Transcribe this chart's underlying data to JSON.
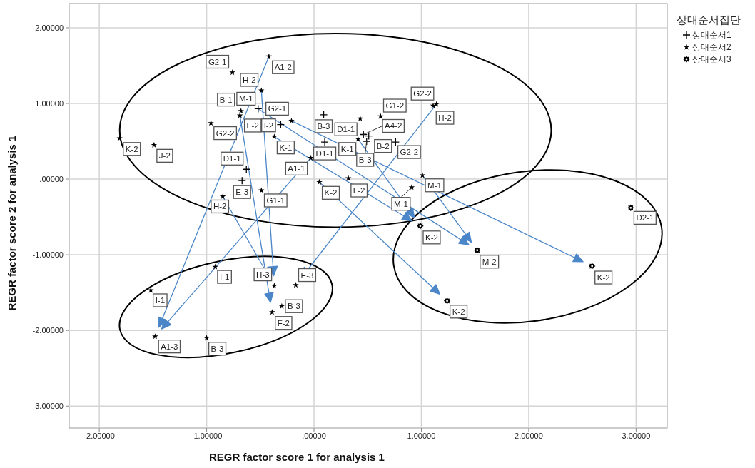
{
  "chart_data": {
    "type": "scatter",
    "xlabel": "REGR factor score   1 for analysis 1",
    "ylabel": "REGR factor score   2 for analysis 1",
    "legend_title": "상대순서집단",
    "legend": "top right",
    "grid": true,
    "xlim": [
      -2.28,
      3.29
    ],
    "ylim": [
      -3.29,
      2.32
    ],
    "xticks": [
      {
        "value": -2,
        "label": "-2.00000"
      },
      {
        "value": -1,
        "label": "-1.00000"
      },
      {
        "value": 0,
        "label": ".00000"
      },
      {
        "value": 1,
        "label": "1.00000"
      },
      {
        "value": 2,
        "label": "2.00000"
      },
      {
        "value": 3,
        "label": "3.00000"
      }
    ],
    "yticks": [
      {
        "value": -3,
        "label": "-3.00000"
      },
      {
        "value": -2,
        "label": "-2.00000"
      },
      {
        "value": -1,
        "label": "-1.00000"
      },
      {
        "value": 0,
        "label": ".00000"
      },
      {
        "value": 1,
        "label": "1.00000"
      },
      {
        "value": 2,
        "label": "2.00000"
      }
    ],
    "series": [
      {
        "name": "상대순서1",
        "color": "#000000",
        "marker": "cross",
        "x": [
          -0.52,
          -0.31,
          -0.63,
          -0.67,
          0.09,
          0.46,
          0.49,
          0.51,
          0.76,
          0.1
        ],
        "values": [
          0.93,
          0.72,
          0.13,
          -0.02,
          0.85,
          0.59,
          0.5,
          0.57,
          0.49,
          0.49
        ]
      },
      {
        "name": "상대순서2",
        "color": "#000000",
        "marker": "star",
        "x": [
          -0.42,
          -0.76,
          -0.49,
          -0.68,
          -0.21,
          -0.69,
          -0.96,
          -0.37,
          -1.81,
          -1.49,
          -0.03,
          -0.49,
          -0.85,
          0.43,
          0.62,
          0.41,
          1.11,
          1.14,
          0.05,
          0.32,
          1.01,
          0.91,
          -0.92,
          -0.37,
          -0.17,
          -0.3,
          -0.39,
          -1.52,
          -1.48,
          -1.0
        ],
        "values": [
          1.62,
          1.41,
          1.17,
          0.9,
          0.77,
          0.84,
          0.74,
          0.56,
          0.54,
          0.45,
          0.28,
          -0.15,
          -0.23,
          0.8,
          0.83,
          0.53,
          0.97,
          0.99,
          -0.04,
          0.01,
          0.05,
          -0.11,
          -1.16,
          -1.41,
          -1.4,
          -1.68,
          -1.76,
          -1.47,
          -2.08,
          -2.1
        ]
      },
      {
        "name": "상대순서3",
        "color": "#000000",
        "marker": "circle",
        "x": [
          0.99,
          1.52,
          2.59,
          1.24,
          2.95
        ],
        "values": [
          -0.62,
          -0.94,
          -1.15,
          -1.61,
          -0.38
        ]
      }
    ],
    "annotations": [
      {
        "text": "A1-2",
        "x": -0.42,
        "y": 1.62
      },
      {
        "text": "G2-1",
        "x": -0.76,
        "y": 1.41
      },
      {
        "text": "H-2",
        "x": -0.49,
        "y": 1.17
      },
      {
        "text": "B-1",
        "x": -0.68,
        "y": 0.9
      },
      {
        "text": "M-1",
        "x": -0.52,
        "y": 0.93
      },
      {
        "text": "G2-1",
        "x": -0.21,
        "y": 0.77
      },
      {
        "text": "I-2",
        "x": -0.31,
        "y": 0.72
      },
      {
        "text": "F-2",
        "x": -0.69,
        "y": 0.84
      },
      {
        "text": "G2-2",
        "x": -0.96,
        "y": 0.74
      },
      {
        "text": "K-1",
        "x": -0.37,
        "y": 0.56
      },
      {
        "text": "K-2",
        "x": -1.81,
        "y": 0.54
      },
      {
        "text": "J-2",
        "x": -1.49,
        "y": 0.45
      },
      {
        "text": "D1-1",
        "x": -0.63,
        "y": 0.13
      },
      {
        "text": "A1-1",
        "x": -0.03,
        "y": 0.28
      },
      {
        "text": "E-3",
        "x": -0.67,
        "y": -0.02
      },
      {
        "text": "G1-1",
        "x": -0.49,
        "y": -0.15
      },
      {
        "text": "H-2",
        "x": -0.85,
        "y": -0.23
      },
      {
        "text": "B-3",
        "x": 0.09,
        "y": 0.85
      },
      {
        "text": "D1-1",
        "x": 0.43,
        "y": 0.8
      },
      {
        "text": "G1-2",
        "x": 0.62,
        "y": 0.83
      },
      {
        "text": "A4-2",
        "x": 0.46,
        "y": 0.59
      },
      {
        "text": "K-1",
        "x": 0.41,
        "y": 0.53
      },
      {
        "text": "B-3",
        "x": 0.49,
        "y": 0.5
      },
      {
        "text": "B-2",
        "x": 0.51,
        "y": 0.57
      },
      {
        "text": "G2-2",
        "x": 0.76,
        "y": 0.49
      },
      {
        "text": "D1-1",
        "x": 0.1,
        "y": 0.49
      },
      {
        "text": "G2-2",
        "x": 1.11,
        "y": 0.97
      },
      {
        "text": "H-2",
        "x": 1.14,
        "y": 0.99
      },
      {
        "text": "K-2",
        "x": 0.05,
        "y": -0.04
      },
      {
        "text": "L-2",
        "x": 0.32,
        "y": 0.01
      },
      {
        "text": "M-1",
        "x": 1.01,
        "y": 0.05
      },
      {
        "text": "M-1",
        "x": 0.91,
        "y": -0.11
      },
      {
        "text": "I-1",
        "x": -0.92,
        "y": -1.16
      },
      {
        "text": "H-3",
        "x": -0.37,
        "y": -1.41
      },
      {
        "text": "E-3",
        "x": -0.17,
        "y": -1.4
      },
      {
        "text": "B-3",
        "x": -0.3,
        "y": -1.68
      },
      {
        "text": "F-2",
        "x": -0.39,
        "y": -1.76
      },
      {
        "text": "I-1",
        "x": -1.52,
        "y": -1.47
      },
      {
        "text": "A1-3",
        "x": -1.48,
        "y": -2.08
      },
      {
        "text": "B-3",
        "x": -1.0,
        "y": -2.1
      },
      {
        "text": "K-2",
        "x": 0.99,
        "y": -0.62
      },
      {
        "text": "M-2",
        "x": 1.52,
        "y": -0.94
      },
      {
        "text": "K-2",
        "x": 2.59,
        "y": -1.15
      },
      {
        "text": "K-2",
        "x": 1.24,
        "y": -1.61
      },
      {
        "text": "D2-1",
        "x": 2.95,
        "y": -0.38
      }
    ]
  }
}
